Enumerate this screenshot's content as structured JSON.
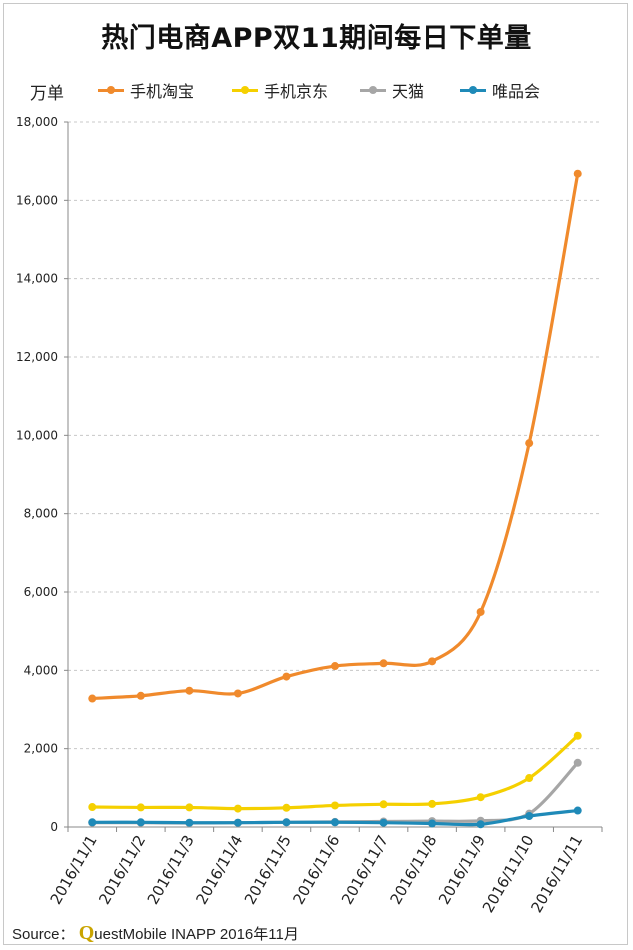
{
  "chart_data": {
    "type": "line",
    "title": "热门电商APP双11期间每日下单量",
    "ylabel": "万单",
    "ylim": [
      0,
      18000
    ],
    "yticks": [
      "0",
      "2,000",
      "4,000",
      "6,000",
      "8,000",
      "10,000",
      "12,000",
      "14,000",
      "16,000",
      "18,000"
    ],
    "categories": [
      "2016/11/1",
      "2016/11/2",
      "2016/11/3",
      "2016/11/4",
      "2016/11/5",
      "2016/11/6",
      "2016/11/7",
      "2016/11/8",
      "2016/11/9",
      "2016/11/10",
      "2016/11/11"
    ],
    "grid": true,
    "legend_position": "top",
    "series": [
      {
        "name": "手机淘宝",
        "color": "#f08a2c",
        "values": [
          3280,
          3350,
          3480,
          3410,
          3840,
          4110,
          4180,
          4230,
          5490,
          9800,
          16680
        ]
      },
      {
        "name": "手机京东",
        "color": "#f5d000",
        "values": [
          510,
          500,
          500,
          470,
          490,
          550,
          580,
          590,
          760,
          1250,
          2330
        ]
      },
      {
        "name": "天猫",
        "color": "#a6a6a6",
        "values": [
          110,
          110,
          100,
          110,
          120,
          130,
          140,
          150,
          160,
          340,
          1640
        ]
      },
      {
        "name": "唯品会",
        "color": "#1f8ab8",
        "values": [
          120,
          120,
          110,
          110,
          120,
          120,
          110,
          90,
          70,
          280,
          420
        ]
      }
    ]
  },
  "source": {
    "prefix": "Source：",
    "brand_q": "Q",
    "brand_rest": "uestMobile INAPP 2016年11月"
  }
}
